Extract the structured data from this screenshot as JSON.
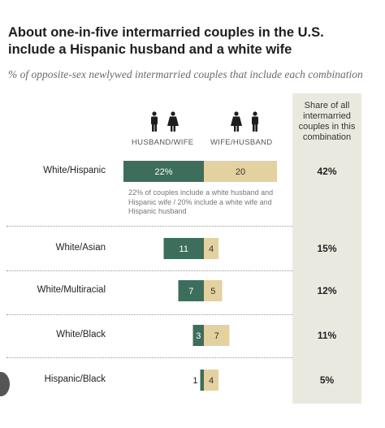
{
  "title": "About one-in-five intermarried couples in the U.S. include a Hispanic husband and a white wife",
  "subtitle": "% of opposite-sex newlywed intermarried couples that include each combination",
  "legend": {
    "husband_wife": "HUSBAND/WIFE",
    "wife_husband": "WIFE/HUSBAND"
  },
  "share_header": "Share of all intermarried couples in this combination",
  "note": "22% of couples include a white husband and Hispanic wife / 20% include a white wife and Hispanic husband",
  "colors": {
    "husband_wife": "#3d6e5c",
    "wife_husband": "#e3d19f",
    "share_column": "#eae9df"
  },
  "icons": [
    "male-figure-icon",
    "female-figure-icon"
  ],
  "chart_data": {
    "type": "bar",
    "categories": [
      "White/Hispanic",
      "White/Asian",
      "White/Multiracial",
      "White/Black",
      "Hispanic/Black"
    ],
    "series": [
      {
        "name": "HUSBAND/WIFE",
        "values": [
          22,
          11,
          7,
          3,
          1
        ]
      },
      {
        "name": "WIFE/HUSBAND",
        "values": [
          20,
          4,
          5,
          7,
          4
        ]
      }
    ],
    "value_labels": {
      "husband_wife": [
        "22%",
        "11",
        "7",
        "3",
        "1"
      ],
      "wife_husband": [
        "20",
        "4",
        "5",
        "7",
        "4"
      ]
    },
    "share": [
      "42%",
      "15%",
      "12%",
      "11%",
      "5%"
    ]
  }
}
